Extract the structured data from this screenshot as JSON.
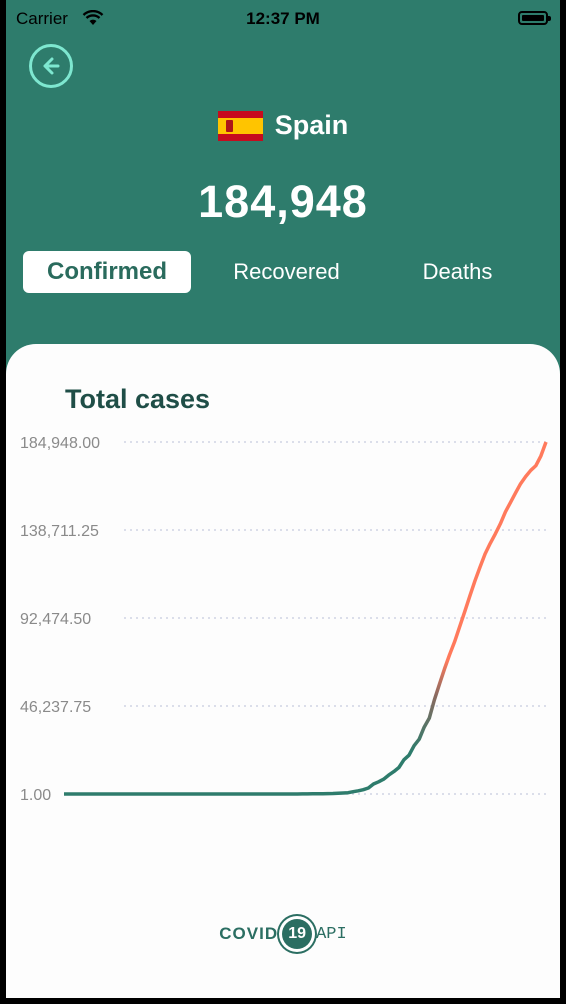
{
  "status_bar": {
    "carrier": "Carrier",
    "time": "12:37 PM"
  },
  "header": {
    "back_icon": "arrow-left-circle-icon",
    "country": "Spain",
    "flag_icon": "spain-flag-icon",
    "total": "184,948"
  },
  "tabs": [
    {
      "label": "Confirmed",
      "active": true
    },
    {
      "label": "Recovered",
      "active": false
    },
    {
      "label": "Deaths",
      "active": false
    }
  ],
  "card": {
    "title": "Total cases"
  },
  "chart_data": {
    "type": "line",
    "title": "Total cases",
    "xlabel": "",
    "ylabel": "",
    "y_ticks": [
      "184,948.00",
      "138,711.25",
      "92,474.50",
      "46,237.75",
      "1.00"
    ],
    "ylim": [
      1,
      184948
    ],
    "grid": true,
    "series": [
      {
        "values": [
          1,
          1,
          1,
          1,
          1,
          1,
          1,
          1,
          1,
          1,
          1,
          1,
          1,
          1,
          1,
          1,
          1,
          1,
          1,
          1,
          1,
          1,
          1,
          1,
          1,
          1,
          1,
          1,
          1,
          1,
          1,
          1,
          1,
          1,
          1,
          2,
          2,
          2,
          2,
          2,
          2,
          2,
          2,
          2,
          6,
          13,
          15,
          32,
          45,
          84,
          120,
          165,
          228,
          282,
          401,
          525,
          674,
          1231,
          1695,
          2277,
          3146,
          5232,
          6391,
          7798,
          9942,
          11748,
          13910,
          17963,
          20410,
          25374,
          28768,
          35136,
          39885,
          49515,
          57786,
          65719,
          73235,
          80110,
          87956,
          95923,
          104118,
          112065,
          119199,
          126168,
          131646,
          136675,
          141942,
          148220,
          153222,
          158273,
          163027,
          166831,
          170099,
          172541,
          177644,
          184948
        ],
        "colors": {
          "start": "#2e7c6c",
          "end": "#ff7a5c"
        }
      }
    ]
  },
  "footer": {
    "logo_left": "COVID",
    "logo_badge": "19",
    "logo_right": "API"
  }
}
